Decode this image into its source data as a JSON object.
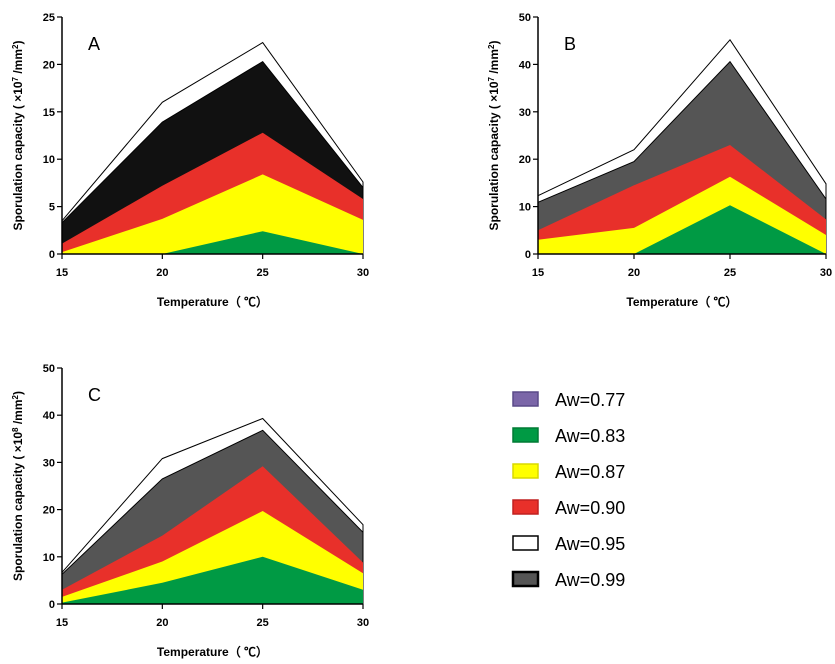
{
  "legend": {
    "items": [
      {
        "label": "Aw=0.77",
        "color": "#7b66a8",
        "border": "#5a4a88"
      },
      {
        "label": "Aw=0.83",
        "color": "#009a44",
        "border": "#007a34"
      },
      {
        "label": "Aw=0.87",
        "color": "#ffff00",
        "border": "#d8d800"
      },
      {
        "label": "Aw=0.90",
        "color": "#e8302a",
        "border": "#c02020"
      },
      {
        "label": "Aw=0.95",
        "color": "#ffffff",
        "border": "#000000"
      },
      {
        "label": "Aw=0.99",
        "color": "#555555",
        "border": "#000000"
      }
    ]
  },
  "chart_data": [
    {
      "type": "area",
      "panel": "A",
      "x": [
        15,
        20,
        25,
        30
      ],
      "xticks": [
        "15",
        "20",
        "25",
        "30"
      ],
      "xlabel": "Temperature（ ℃）",
      "ylabel": "Sporulation capacity ( ×10^7 /mm^2)",
      "ylabel_base": "Sporulation capacity ( ×10",
      "ylabel_exp": "7",
      "ylabel_mid": " /mm",
      "ylabel_exp2": "2",
      "ylabel_end": ")",
      "ylim": [
        0,
        25
      ],
      "yticks": [
        "0",
        "5",
        "10",
        "15",
        "20",
        "25"
      ],
      "series": [
        {
          "name": "Aw=0.95",
          "color": "#ffffff",
          "values": [
            3.5,
            16,
            22.3,
            7.6
          ]
        },
        {
          "name": "Aw=0.99",
          "color": "#111111",
          "values": [
            3.3,
            13.9,
            20.3,
            7.0
          ]
        },
        {
          "name": "Aw=0.90",
          "color": "#e8302a",
          "values": [
            1.1,
            7.2,
            12.8,
            5.8
          ]
        },
        {
          "name": "Aw=0.87",
          "color": "#ffff00",
          "values": [
            0.2,
            3.7,
            8.4,
            3.6
          ]
        },
        {
          "name": "Aw=0.83",
          "color": "#009a44",
          "values": [
            0,
            0,
            2.4,
            0
          ]
        }
      ]
    },
    {
      "type": "area",
      "panel": "B",
      "x": [
        15,
        20,
        25,
        30
      ],
      "xticks": [
        "15",
        "20",
        "25",
        "30"
      ],
      "xlabel": "Temperature（ ℃）",
      "ylabel": "Sporulation capacity ( ×10^7 /mm^2)",
      "ylabel_base": "Sporulation capacity ( ×10",
      "ylabel_exp": "7",
      "ylabel_mid": " /mm",
      "ylabel_exp2": "2",
      "ylabel_end": ")",
      "ylim": [
        0,
        50
      ],
      "yticks": [
        "0",
        "10",
        "20",
        "30",
        "40",
        "50"
      ],
      "series": [
        {
          "name": "Aw=0.95",
          "color": "#ffffff",
          "values": [
            12.3,
            22,
            45.2,
            14.8
          ]
        },
        {
          "name": "Aw=0.99",
          "color": "#555555",
          "values": [
            10.9,
            19.5,
            40.6,
            11.6
          ]
        },
        {
          "name": "Aw=0.90",
          "color": "#e8302a",
          "values": [
            5.0,
            14.5,
            23.0,
            7.3
          ]
        },
        {
          "name": "Aw=0.87",
          "color": "#ffff00",
          "values": [
            3.0,
            5.5,
            16.3,
            4.0
          ]
        },
        {
          "name": "Aw=0.83",
          "color": "#009a44",
          "values": [
            0,
            0,
            10.3,
            0
          ]
        }
      ]
    },
    {
      "type": "area",
      "panel": "C",
      "x": [
        15,
        20,
        25,
        30
      ],
      "xticks": [
        "15",
        "20",
        "25",
        "30"
      ],
      "xlabel": "Temperature（ ℃）",
      "ylabel": "Sporulation capacity ( ×10^8 /mm^2)",
      "ylabel_base": "Sporulation capacity ( ×10",
      "ylabel_exp": "8",
      "ylabel_mid": " /mm",
      "ylabel_exp2": "2",
      "ylabel_end": ")",
      "ylim": [
        0,
        50
      ],
      "yticks": [
        "0",
        "10",
        "20",
        "30",
        "40",
        "50"
      ],
      "series": [
        {
          "name": "Aw=0.95",
          "color": "#ffffff",
          "values": [
            6.7,
            30.8,
            39.3,
            16.8
          ]
        },
        {
          "name": "Aw=0.99",
          "color": "#555555",
          "values": [
            6.3,
            26.5,
            36.8,
            15.2
          ]
        },
        {
          "name": "Aw=0.90",
          "color": "#e8302a",
          "values": [
            3.0,
            14.5,
            29.2,
            8.8
          ]
        },
        {
          "name": "Aw=0.87",
          "color": "#ffff00",
          "values": [
            1.5,
            9.0,
            19.7,
            6.5
          ]
        },
        {
          "name": "Aw=0.83",
          "color": "#009a44",
          "values": [
            0.3,
            4.5,
            10.0,
            3.0
          ]
        }
      ]
    }
  ]
}
